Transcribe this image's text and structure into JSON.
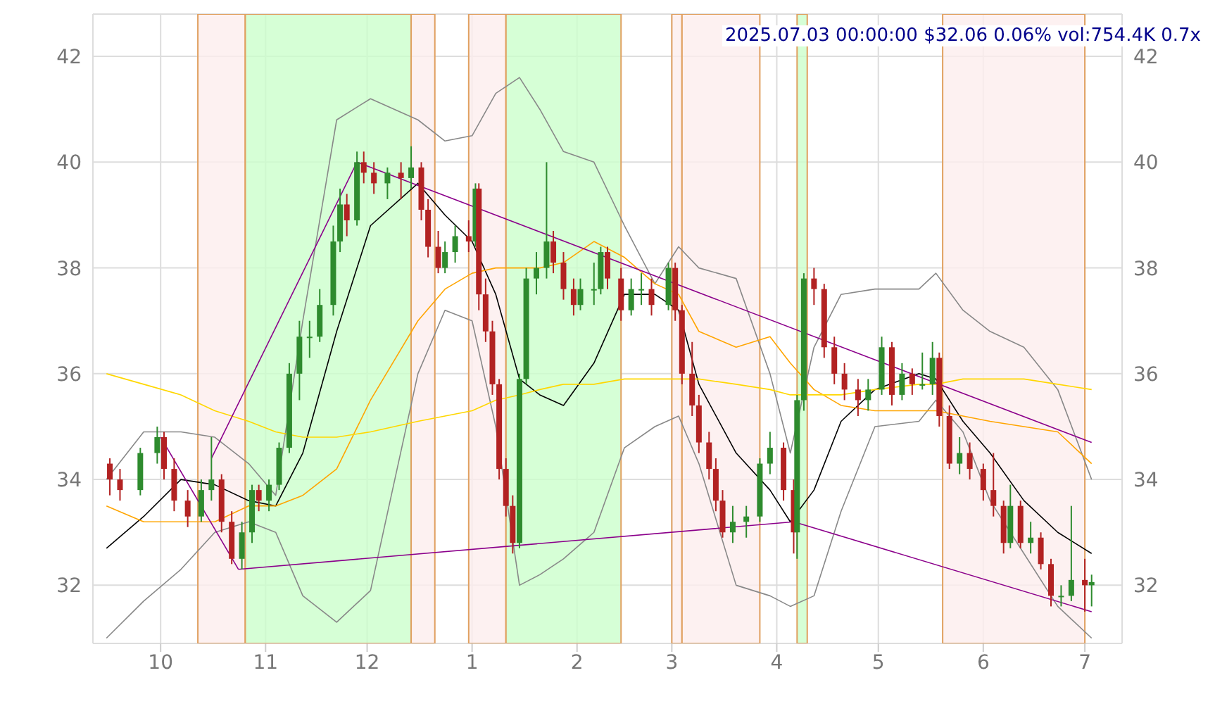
{
  "chart_data": {
    "type": "candlestick",
    "title": "2025.07.03 00:00:00 $32.06 0.06% vol:754.4K 0.7x",
    "x": [
      "2024-09-16",
      "2024-09-19",
      "2024-09-25",
      "2024-09-30",
      "2024-10-02",
      "2024-10-05",
      "2024-10-09",
      "2024-10-13",
      "2024-10-16",
      "2024-10-19",
      "2024-10-22",
      "2024-10-25",
      "2024-10-28",
      "2024-10-30",
      "2024-11-02",
      "2024-11-05",
      "2024-11-08",
      "2024-11-11",
      "2024-11-14",
      "2024-11-17",
      "2024-11-21",
      "2024-11-23",
      "2024-11-25",
      "2024-11-28",
      "2024-11-30",
      "2024-12-03",
      "2024-12-07",
      "2024-12-11",
      "2024-12-14",
      "2024-12-17",
      "2024-12-19",
      "2024-12-22",
      "2024-12-24",
      "2024-12-27",
      "2024-12-31",
      "2025-01-02",
      "2025-01-03",
      "2025-01-05",
      "2025-01-07",
      "2025-01-09",
      "2025-01-11",
      "2025-01-13",
      "2025-01-15",
      "2025-01-17",
      "2025-01-20",
      "2025-01-23",
      "2025-01-25",
      "2025-01-28",
      "2025-01-31",
      "2025-02-02",
      "2025-02-06",
      "2025-02-08",
      "2025-02-10",
      "2025-02-14",
      "2025-02-17",
      "2025-02-20",
      "2025-02-23",
      "2025-02-28",
      "2025-03-02",
      "2025-03-04",
      "2025-03-07",
      "2025-03-09",
      "2025-03-12",
      "2025-03-14",
      "2025-03-16",
      "2025-03-19",
      "2025-03-23",
      "2025-03-27",
      "2025-03-30",
      "2025-04-03",
      "2025-04-06",
      "2025-04-07",
      "2025-04-09",
      "2025-04-12",
      "2025-04-15",
      "2025-04-18",
      "2025-04-21",
      "2025-04-25",
      "2025-04-28",
      "2025-05-02",
      "2025-05-05",
      "2025-05-08",
      "2025-05-11",
      "2025-05-14",
      "2025-05-17",
      "2025-05-19",
      "2025-05-22",
      "2025-05-25",
      "2025-05-28",
      "2025-06-01",
      "2025-06-04",
      "2025-06-07",
      "2025-06-09",
      "2025-06-12",
      "2025-06-15",
      "2025-06-18",
      "2025-06-21",
      "2025-06-24",
      "2025-06-27",
      "2025-07-01",
      "2025-07-03"
    ],
    "ohlc": [
      [
        34.3,
        34.4,
        33.7,
        34.0
      ],
      [
        34.0,
        34.2,
        33.6,
        33.8
      ],
      [
        33.8,
        34.6,
        33.7,
        34.5
      ],
      [
        34.5,
        35.0,
        34.3,
        34.8
      ],
      [
        34.8,
        34.9,
        34.0,
        34.2
      ],
      [
        34.2,
        34.4,
        33.4,
        33.6
      ],
      [
        33.6,
        33.8,
        33.1,
        33.3
      ],
      [
        33.3,
        34.0,
        33.2,
        33.8
      ],
      [
        33.8,
        34.8,
        33.6,
        34.0
      ],
      [
        34.0,
        34.1,
        33.0,
        33.2
      ],
      [
        33.2,
        33.4,
        32.4,
        32.5
      ],
      [
        32.5,
        33.2,
        32.3,
        33.0
      ],
      [
        33.0,
        33.9,
        32.8,
        33.8
      ],
      [
        33.8,
        33.9,
        33.4,
        33.6
      ],
      [
        33.6,
        34.0,
        33.4,
        33.9
      ],
      [
        33.9,
        34.7,
        33.8,
        34.6
      ],
      [
        34.6,
        36.2,
        34.5,
        36.0
      ],
      [
        36.0,
        37.0,
        35.5,
        36.7
      ],
      [
        36.7,
        37.0,
        36.3,
        36.7
      ],
      [
        36.7,
        37.6,
        36.6,
        37.3
      ],
      [
        37.3,
        38.8,
        37.1,
        38.5
      ],
      [
        38.5,
        39.5,
        38.3,
        39.2
      ],
      [
        39.2,
        39.4,
        38.6,
        38.9
      ],
      [
        38.9,
        40.2,
        38.8,
        40.0
      ],
      [
        40.0,
        40.2,
        39.6,
        39.8
      ],
      [
        39.8,
        40.0,
        39.4,
        39.6
      ],
      [
        39.6,
        39.9,
        39.3,
        39.8
      ],
      [
        39.8,
        40.0,
        39.3,
        39.7
      ],
      [
        39.7,
        40.3,
        39.5,
        39.9
      ],
      [
        39.9,
        40.0,
        38.9,
        39.1
      ],
      [
        39.1,
        39.3,
        38.2,
        38.4
      ],
      [
        38.4,
        38.7,
        37.9,
        38.0
      ],
      [
        38.0,
        38.5,
        37.9,
        38.3
      ],
      [
        38.3,
        38.8,
        38.1,
        38.6
      ],
      [
        38.6,
        38.9,
        38.3,
        38.5
      ],
      [
        38.5,
        39.6,
        38.4,
        39.5
      ],
      [
        39.5,
        39.6,
        37.2,
        37.5
      ],
      [
        37.5,
        37.8,
        36.6,
        36.8
      ],
      [
        36.8,
        37.0,
        35.6,
        35.8
      ],
      [
        35.8,
        35.9,
        34.0,
        34.2
      ],
      [
        34.2,
        34.4,
        33.3,
        33.5
      ],
      [
        33.5,
        33.7,
        32.6,
        32.8
      ],
      [
        32.8,
        36.0,
        32.7,
        35.9
      ],
      [
        35.9,
        38.0,
        35.8,
        37.8
      ],
      [
        37.8,
        38.3,
        37.5,
        38.0
      ],
      [
        38.0,
        40.0,
        37.8,
        38.5
      ],
      [
        38.5,
        38.7,
        37.9,
        38.1
      ],
      [
        38.1,
        38.3,
        37.4,
        37.6
      ],
      [
        37.6,
        37.8,
        37.1,
        37.3
      ],
      [
        37.3,
        37.8,
        37.2,
        37.6
      ],
      [
        37.6,
        38.1,
        37.3,
        37.6
      ],
      [
        37.6,
        38.4,
        37.5,
        38.3
      ],
      [
        38.3,
        38.4,
        37.6,
        37.8
      ],
      [
        37.8,
        38.0,
        37.0,
        37.2
      ],
      [
        37.2,
        37.8,
        37.1,
        37.6
      ],
      [
        37.6,
        37.9,
        37.3,
        37.6
      ],
      [
        37.6,
        37.8,
        37.1,
        37.3
      ],
      [
        37.3,
        38.1,
        37.2,
        38.0
      ],
      [
        38.0,
        38.1,
        37.0,
        37.2
      ],
      [
        37.2,
        37.3,
        35.8,
        36.0
      ],
      [
        36.0,
        36.6,
        35.2,
        35.4
      ],
      [
        35.4,
        35.6,
        34.5,
        34.7
      ],
      [
        34.7,
        34.9,
        34.0,
        34.2
      ],
      [
        34.2,
        34.4,
        33.4,
        33.6
      ],
      [
        33.6,
        33.8,
        32.9,
        33.0
      ],
      [
        33.0,
        33.5,
        32.8,
        33.2
      ],
      [
        33.2,
        33.5,
        32.9,
        33.3
      ],
      [
        33.3,
        34.4,
        33.2,
        34.3
      ],
      [
        34.3,
        34.9,
        34.1,
        34.6
      ],
      [
        34.6,
        34.7,
        33.6,
        33.8
      ],
      [
        33.8,
        34.0,
        32.6,
        33.0
      ],
      [
        33.0,
        35.6,
        32.5,
        35.5
      ],
      [
        35.5,
        37.9,
        35.3,
        37.8
      ],
      [
        37.8,
        38.0,
        37.3,
        37.6
      ],
      [
        37.6,
        37.7,
        36.3,
        36.5
      ],
      [
        36.5,
        36.7,
        35.8,
        36.0
      ],
      [
        36.0,
        36.2,
        35.5,
        35.7
      ],
      [
        35.7,
        35.9,
        35.2,
        35.5
      ],
      [
        35.5,
        35.9,
        35.3,
        35.7
      ],
      [
        35.7,
        36.7,
        35.6,
        36.5
      ],
      [
        36.5,
        36.6,
        35.4,
        35.6
      ],
      [
        35.6,
        36.2,
        35.5,
        36.0
      ],
      [
        36.0,
        36.1,
        35.6,
        35.8
      ],
      [
        35.8,
        36.4,
        35.7,
        35.8
      ],
      [
        35.8,
        36.6,
        35.6,
        36.3
      ],
      [
        36.3,
        36.4,
        35.0,
        35.2
      ],
      [
        35.2,
        35.4,
        34.2,
        34.3
      ],
      [
        34.3,
        34.8,
        34.1,
        34.5
      ],
      [
        34.5,
        34.7,
        34.0,
        34.2
      ],
      [
        34.2,
        34.3,
        33.6,
        33.8
      ],
      [
        33.8,
        34.5,
        33.3,
        33.5
      ],
      [
        33.5,
        33.6,
        32.6,
        32.8
      ],
      [
        32.8,
        33.9,
        32.7,
        33.5
      ],
      [
        33.5,
        33.6,
        32.7,
        32.8
      ],
      [
        32.8,
        33.2,
        32.6,
        32.9
      ],
      [
        32.9,
        33.0,
        32.3,
        32.4
      ],
      [
        32.4,
        32.5,
        31.6,
        31.8
      ],
      [
        31.8,
        32.0,
        31.6,
        31.8
      ],
      [
        31.8,
        33.5,
        31.7,
        32.1
      ],
      [
        32.1,
        32.5,
        31.5,
        32.0
      ],
      [
        32.0,
        32.2,
        31.6,
        32.06
      ]
    ],
    "series": [
      {
        "type": "line",
        "color": "#000000",
        "x": [
          "2024-09-15",
          "2024-09-26",
          "2024-10-07",
          "2024-10-17",
          "2024-10-27",
          "2024-11-04",
          "2024-11-12",
          "2024-11-22",
          "2024-12-02",
          "2024-12-16",
          "2024-12-24",
          "2025-01-01",
          "2025-01-08",
          "2025-01-15",
          "2025-01-21",
          "2025-01-28",
          "2025-02-06",
          "2025-02-15",
          "2025-02-24",
          "2025-03-03",
          "2025-03-09",
          "2025-03-20",
          "2025-03-30",
          "2025-04-05",
          "2025-04-12",
          "2025-04-20",
          "2025-04-30",
          "2025-05-13",
          "2025-05-18",
          "2025-05-26",
          "2025-06-03",
          "2025-06-13",
          "2025-06-23",
          "2025-07-03"
        ],
        "values": [
          32.7,
          33.3,
          34.0,
          33.9,
          33.6,
          33.5,
          34.5,
          36.8,
          38.8,
          39.6,
          39.0,
          38.5,
          37.5,
          35.9,
          35.6,
          35.4,
          36.2,
          37.5,
          37.5,
          37.2,
          35.8,
          34.5,
          33.8,
          33.2,
          33.8,
          35.1,
          35.7,
          36.0,
          35.9,
          35.1,
          34.5,
          33.6,
          33.0,
          32.6
        ]
      },
      {
        "type": "line",
        "color": "#888888",
        "x": [
          "2024-09-15",
          "2024-09-26",
          "2024-10-07",
          "2024-10-17",
          "2024-10-27",
          "2024-11-04",
          "2024-11-12",
          "2024-11-22",
          "2024-12-02",
          "2024-12-16",
          "2024-12-24",
          "2025-01-01",
          "2025-01-08",
          "2025-01-15",
          "2025-01-21",
          "2025-01-28",
          "2025-02-06",
          "2025-02-15",
          "2025-02-24",
          "2025-03-03",
          "2025-03-09",
          "2025-03-20",
          "2025-03-30",
          "2025-04-05",
          "2025-04-12",
          "2025-04-20",
          "2025-04-30",
          "2025-05-13",
          "2025-05-18",
          "2025-05-26",
          "2025-06-03",
          "2025-06-13",
          "2025-06-23",
          "2025-07-03"
        ],
        "values": [
          34.0,
          34.9,
          34.9,
          34.8,
          34.3,
          33.7,
          37.0,
          40.8,
          41.2,
          40.8,
          40.4,
          40.5,
          41.3,
          41.6,
          41.0,
          40.2,
          40.0,
          38.8,
          37.7,
          38.4,
          38.0,
          37.8,
          36.0,
          34.5,
          36.5,
          37.5,
          37.6,
          37.6,
          37.9,
          37.2,
          36.8,
          36.5,
          35.7,
          34.0
        ]
      },
      {
        "type": "line",
        "color": "#888888",
        "x": [
          "2024-09-15",
          "2024-09-26",
          "2024-10-07",
          "2024-10-17",
          "2024-10-27",
          "2024-11-04",
          "2024-11-12",
          "2024-11-22",
          "2024-12-02",
          "2024-12-16",
          "2024-12-24",
          "2025-01-01",
          "2025-01-08",
          "2025-01-15",
          "2025-01-21",
          "2025-01-28",
          "2025-02-06",
          "2025-02-15",
          "2025-02-24",
          "2025-03-03",
          "2025-03-09",
          "2025-03-20",
          "2025-03-30",
          "2025-04-05",
          "2025-04-12",
          "2025-04-20",
          "2025-04-30",
          "2025-05-13",
          "2025-05-18",
          "2025-05-26",
          "2025-06-03",
          "2025-06-13",
          "2025-06-23",
          "2025-07-03"
        ],
        "values": [
          31.0,
          31.7,
          32.3,
          33.0,
          33.2,
          33.0,
          31.8,
          31.3,
          31.9,
          36.0,
          37.2,
          37.0,
          35.0,
          32.0,
          32.2,
          32.5,
          33.0,
          34.6,
          35.0,
          35.2,
          34.3,
          32.0,
          31.8,
          31.6,
          31.8,
          33.4,
          35.0,
          35.1,
          35.5,
          34.9,
          33.6,
          32.6,
          31.6,
          31.0
        ]
      },
      {
        "type": "line",
        "color": "#ffa500",
        "x": [
          "2024-09-15",
          "2024-09-26",
          "2024-10-07",
          "2024-10-17",
          "2024-10-27",
          "2024-11-04",
          "2024-11-12",
          "2024-11-22",
          "2024-12-02",
          "2024-12-16",
          "2024-12-24",
          "2025-01-01",
          "2025-01-08",
          "2025-01-15",
          "2025-01-21",
          "2025-01-28",
          "2025-02-06",
          "2025-02-15",
          "2025-02-24",
          "2025-03-03",
          "2025-03-09",
          "2025-03-20",
          "2025-03-30",
          "2025-04-05",
          "2025-04-12",
          "2025-04-20",
          "2025-04-30",
          "2025-05-13",
          "2025-05-18",
          "2025-05-26",
          "2025-06-03",
          "2025-06-13",
          "2025-06-23",
          "2025-07-03"
        ],
        "values": [
          33.5,
          33.2,
          33.2,
          33.2,
          33.5,
          33.5,
          33.7,
          34.2,
          35.5,
          37.0,
          37.6,
          37.9,
          38.0,
          38.0,
          38.0,
          38.1,
          38.5,
          38.2,
          37.7,
          37.5,
          36.8,
          36.5,
          36.7,
          36.2,
          35.7,
          35.4,
          35.3,
          35.3,
          35.3,
          35.2,
          35.1,
          35.0,
          34.9,
          34.3
        ]
      },
      {
        "type": "line",
        "color": "#ffd700",
        "x": [
          "2024-09-15",
          "2024-09-26",
          "2024-10-07",
          "2024-10-17",
          "2024-10-27",
          "2024-11-04",
          "2024-11-12",
          "2024-11-22",
          "2024-12-02",
          "2024-12-16",
          "2024-12-24",
          "2025-01-01",
          "2025-01-08",
          "2025-01-15",
          "2025-01-21",
          "2025-01-28",
          "2025-02-06",
          "2025-02-15",
          "2025-02-24",
          "2025-03-03",
          "2025-03-09",
          "2025-03-20",
          "2025-03-30",
          "2025-04-05",
          "2025-04-12",
          "2025-04-20",
          "2025-04-30",
          "2025-05-13",
          "2025-05-18",
          "2025-05-26",
          "2025-06-03",
          "2025-06-13",
          "2025-06-23",
          "2025-07-03"
        ],
        "values": [
          36.0,
          35.8,
          35.6,
          35.3,
          35.1,
          34.9,
          34.8,
          34.8,
          34.9,
          35.1,
          35.2,
          35.3,
          35.5,
          35.6,
          35.7,
          35.8,
          35.8,
          35.9,
          35.9,
          35.9,
          35.9,
          35.8,
          35.7,
          35.6,
          35.6,
          35.6,
          35.7,
          35.8,
          35.8,
          35.9,
          35.9,
          35.9,
          35.8,
          35.7
        ]
      },
      {
        "type": "line",
        "color": "#8b008b",
        "x": [
          "2024-10-01",
          "2024-10-24"
        ],
        "values": [
          34.8,
          32.3
        ]
      },
      {
        "type": "line",
        "color": "#8b008b",
        "x": [
          "2024-10-16",
          "2024-11-28",
          "2025-07-03"
        ],
        "values": [
          34.4,
          40.0,
          34.7
        ]
      },
      {
        "type": "line",
        "color": "#8b008b",
        "x": [
          "2024-10-24",
          "2025-04-06",
          "2025-07-03"
        ],
        "values": [
          32.3,
          33.2,
          31.5
        ]
      }
    ],
    "bands": [
      {
        "axis": "x",
        "from": "2024-10-12",
        "to": "2024-10-26",
        "color": "#fdeeee"
      },
      {
        "axis": "x",
        "from": "2024-10-26",
        "to": "2024-12-14",
        "color": "#ccffcc"
      },
      {
        "axis": "x",
        "from": "2024-12-14",
        "to": "2024-12-21",
        "color": "#fdeeee"
      },
      {
        "axis": "x",
        "from": "2024-12-31",
        "to": "2025-01-11",
        "color": "#fdeeee"
      },
      {
        "axis": "x",
        "from": "2025-01-11",
        "to": "2025-02-14",
        "color": "#ccffcc"
      },
      {
        "axis": "x",
        "from": "2025-03-01",
        "to": "2025-03-04",
        "color": "#fdeeee"
      },
      {
        "axis": "x",
        "from": "2025-03-04",
        "to": "2025-03-27",
        "color": "#fdeeee"
      },
      {
        "axis": "x",
        "from": "2025-04-07",
        "to": "2025-04-10",
        "color": "#ccffcc"
      },
      {
        "axis": "x",
        "from": "2025-05-20",
        "to": "2025-07-01",
        "color": "#fdeeee"
      }
    ],
    "xlim": [
      "2024-09-11",
      "2025-07-12"
    ],
    "xticks": [
      {
        "value": "2024-10-01",
        "label": "10"
      },
      {
        "value": "2024-11-01",
        "label": "11"
      },
      {
        "value": "2024-12-01",
        "label": "12"
      },
      {
        "value": "2025-01-01",
        "label": "1"
      },
      {
        "value": "2025-02-01",
        "label": "2"
      },
      {
        "value": "2025-03-01",
        "label": "3"
      },
      {
        "value": "2025-04-01",
        "label": "4"
      },
      {
        "value": "2025-05-01",
        "label": "5"
      },
      {
        "value": "2025-06-01",
        "label": "6"
      },
      {
        "value": "2025-07-01",
        "label": "7"
      }
    ],
    "ylim": [
      30.9,
      42.8
    ],
    "yticks": [
      32,
      34,
      36,
      38,
      40,
      42
    ],
    "y2lim": [
      30.9,
      42.8
    ],
    "y2ticks": [
      32,
      34,
      36,
      38,
      40,
      42
    ],
    "grid": true
  }
}
